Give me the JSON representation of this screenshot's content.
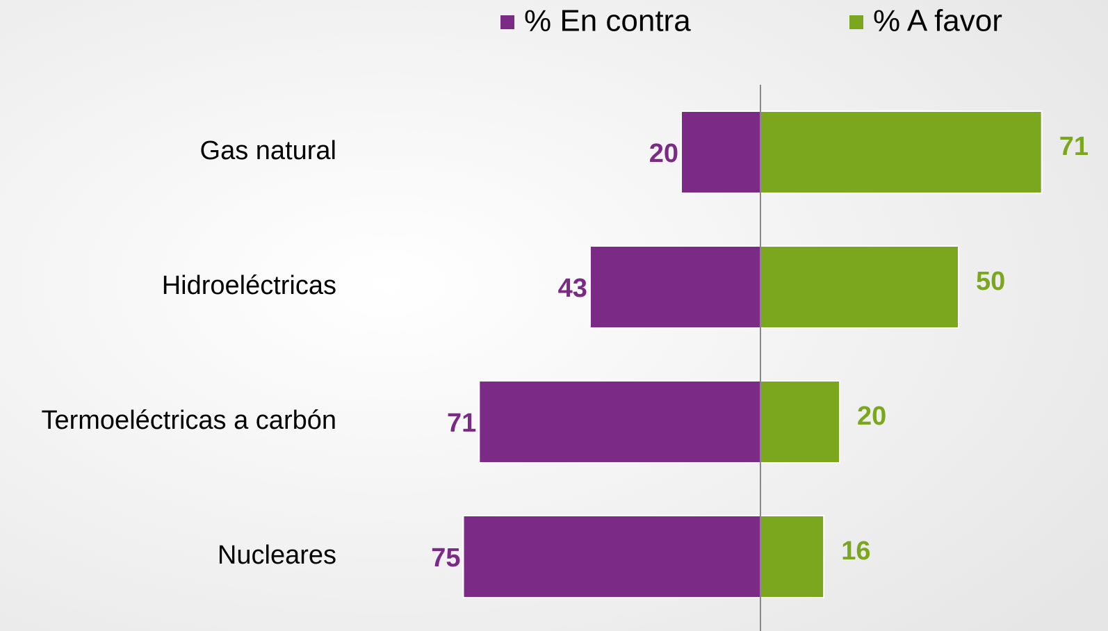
{
  "chart_data": {
    "type": "bar",
    "orientation": "diverging-horizontal",
    "categories": [
      "Gas natural",
      "Hidroeléctricas",
      "Termoeléctricas a carbón",
      "Nucleares"
    ],
    "series": [
      {
        "name": "% En contra",
        "color": "#7b2a86",
        "values": [
          20,
          43,
          71,
          75
        ]
      },
      {
        "name": "% A favor",
        "color": "#7ba71e",
        "values": [
          71,
          50,
          20,
          16
        ]
      }
    ],
    "legend": "top"
  }
}
